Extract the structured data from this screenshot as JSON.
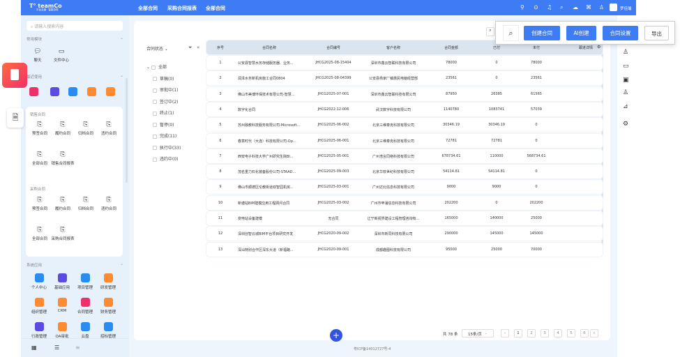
{
  "brand": {
    "name": "teamCo",
    "tagline": "平台互通 · 智能协同"
  },
  "topnav": [
    "全部合同",
    "采购合同报表",
    "全部合同"
  ],
  "top_icons": [
    "pin-icon",
    "location-icon",
    "bell-icon",
    "search-icon",
    "cloud-icon",
    "apps-icon",
    "user-icon"
  ],
  "user": {
    "name": "罗佳瑜"
  },
  "sidebar": {
    "search_placeholder": "请输入搜索内容",
    "common_title": "常用模块",
    "common": [
      "聊天",
      "文件中心"
    ],
    "recent_title": "最近使用",
    "sales_title": "销售合同",
    "sales": [
      "预签合同",
      "履约合同",
      "归档合同",
      "违约合同",
      "全部合同",
      "销售合同报表"
    ],
    "purchase_title": "采购合同",
    "purchase": [
      "预签合同",
      "履约合同",
      "归档合同",
      "违约合同",
      "全部合同",
      "采购合同报表"
    ],
    "system_title": "系统应用",
    "system": [
      "个人中心",
      "基础应用",
      "项目管理",
      "研发管理",
      "组织管理",
      "CRM",
      "合同管理",
      "财务管理",
      "行政管理",
      "OA审批",
      "云盘",
      "招标管理"
    ],
    "colors": {
      "blue": "#2a8cf0",
      "purple": "#5b4be0",
      "orange": "#ff8a30",
      "pink": "#f0306a"
    }
  },
  "filter": {
    "title": "合同状态",
    "items": [
      "全部",
      "草稿(0)",
      "审批中(1)",
      "签订中(2)",
      "终止(1)",
      "暂停(0)",
      "完成(11)",
      "执行中(33)",
      "违约中(0)"
    ]
  },
  "table": {
    "columns": [
      "序号",
      "合同名称",
      "合同编号",
      "客户名称",
      "合同金额",
      "已付",
      "未付",
      "跟进详情"
    ],
    "rows": [
      [
        "1",
        "公安县智慧水务存储服务器、业务...",
        "JHCG2025-08-15404",
        "深圳市鑫云智联科技有限公司",
        "78000",
        "0",
        "78000"
      ],
      [
        "2",
        "润泽水务新机房施工合同0804",
        "JHCG2025-08-04399",
        "公安县杨家厂镇惠民电脑经营部",
        "23561",
        "0",
        "23561"
      ],
      [
        "3",
        "佛山市美博环保技术有限公司-智慧...",
        "JHCG2025-07-001",
        "深圳市鑫云智联科技有限公司",
        "87950",
        "26385",
        "61565"
      ],
      [
        "4",
        "数字化合同",
        "JHCG2022-12-006",
        "武汉数字科技有限公司",
        "1140780",
        "1083741",
        "57039"
      ],
      [
        "5",
        "苏州融教科技服务有限公司-Microsoft...",
        "JHCG2025-06-002",
        "北京三维泰克科技有限公司",
        "30346.19",
        "30346.19",
        "0"
      ],
      [
        "6",
        "春意时代（大连）科技有限公司-Op...",
        "JHCG2025-06-001",
        "北京三维泰克科技有限公司",
        "72781",
        "72781",
        "0"
      ],
      [
        "7",
        "西安电子科技大学广州研究生院BI...",
        "JHCG2025-05-001",
        "广州浩言同络科技有限公司",
        "678734.61",
        "110000",
        "568734.61"
      ],
      [
        "8",
        "茂名重力石化装备股份公司-STAAD...",
        "JHCG2025-09-003",
        "北京华软世纪科技有限公司",
        "54114.81",
        "54114.81",
        "0"
      ],
      [
        "9",
        "佛山市顺德区伦教街道双智园机房...",
        "JHCG2025-03-001",
        "广州达北信息科技有限公司",
        "9000",
        "9000",
        "0"
      ],
      [
        "10",
        "新塘站BIM建模应用工程顾问合同",
        "JHCG2025-03-002",
        "广州市申涌信息科技有限公司",
        "202200",
        "0",
        "202200"
      ],
      [
        "11",
        "变电站设备建模",
        "无合同",
        "辽宁新视界建设工程管理咨询有...",
        "165000",
        "140000",
        "25000"
      ],
      [
        "12",
        "深圳创智云城BIM平台项目研究开发",
        "JHCG2020-09-002",
        "深圳市新同科技有限公司",
        "290000",
        "145000",
        "145000"
      ],
      [
        "13",
        "深汕特别合作区深东大道（新福路...",
        "JHCG2020-09-001",
        "成都趣图科技有限公司",
        "95000",
        "25000",
        "70000"
      ]
    ]
  },
  "toolbar": {
    "create": "创建合同",
    "ai_create": "AI创建",
    "settings": "合同设置",
    "export": "导出"
  },
  "pagination": {
    "total": "共 78 条",
    "page_size": "15条/页",
    "pages": [
      "1",
      "2",
      "3",
      "4",
      "5",
      "6"
    ],
    "current": "1"
  },
  "footer": {
    "icp": "粤ICP备14012727号-4"
  },
  "accent": "#3e7cf6"
}
